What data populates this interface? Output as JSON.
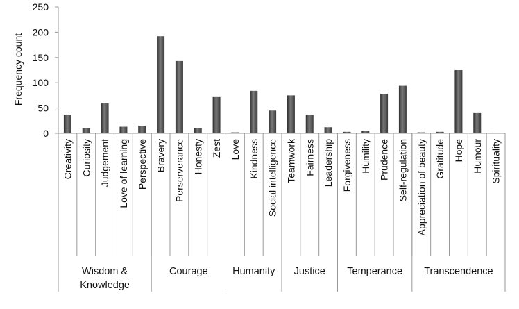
{
  "chart_data": {
    "type": "bar",
    "ylabel": "Frequency count",
    "xlabel": "",
    "ylim": [
      0,
      250
    ],
    "yticks": [
      "0",
      "50",
      "100",
      "150",
      "200",
      "250"
    ],
    "grid": false,
    "bar_color": "#4a4a4a",
    "categories": [
      "Creativity",
      "Curiosity",
      "Judgement",
      "Love of learning",
      "Perspective",
      "Bravery",
      "Perserverance",
      "Honesty",
      "Zest",
      "Love",
      "Kindness",
      "Social intelligence",
      "Teamwork",
      "Fairness",
      "Leadership",
      "Forgiveness",
      "Humility",
      "Prudence",
      "Self-regulation",
      "Appreciation of beauty",
      "Gratitude",
      "Hope",
      "Humour",
      "Spirituality"
    ],
    "values": [
      37,
      10,
      59,
      13,
      15,
      192,
      143,
      11,
      73,
      2,
      84,
      45,
      75,
      37,
      12,
      3,
      5,
      78,
      94,
      2,
      3,
      125,
      40,
      1
    ],
    "groups": [
      {
        "label_lines": [
          "Wisdom &",
          "Knowledge"
        ],
        "start": 0,
        "count": 5
      },
      {
        "label_lines": [
          "Courage"
        ],
        "start": 5,
        "count": 4
      },
      {
        "label_lines": [
          "Humanity"
        ],
        "start": 9,
        "count": 3
      },
      {
        "label_lines": [
          "Justice"
        ],
        "start": 12,
        "count": 3
      },
      {
        "label_lines": [
          "Temperance"
        ],
        "start": 15,
        "count": 4
      },
      {
        "label_lines": [
          "Transcendence"
        ],
        "start": 19,
        "count": 5
      }
    ]
  }
}
